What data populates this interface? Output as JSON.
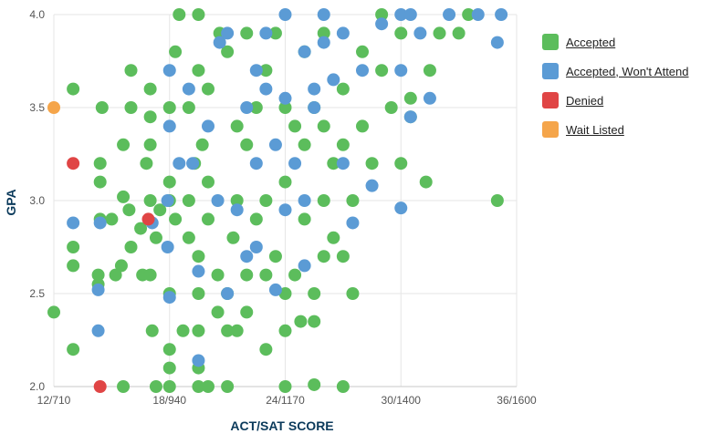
{
  "chart_data": {
    "type": "scatter",
    "xlabel": "ACT/SAT SCORE",
    "ylabel": "GPA",
    "xlim": [
      12,
      36
    ],
    "ylim": [
      2.0,
      4.0
    ],
    "x_ticks": [
      {
        "value": 12,
        "label": "12/710"
      },
      {
        "value": 18,
        "label": "18/940"
      },
      {
        "value": 24,
        "label": "24/1170"
      },
      {
        "value": 30,
        "label": "30/1400"
      },
      {
        "value": 36,
        "label": "36/1600"
      }
    ],
    "y_ticks": [
      {
        "value": 2.0,
        "label": "2.0"
      },
      {
        "value": 2.5,
        "label": "2.5"
      },
      {
        "value": 3.0,
        "label": "3.0"
      },
      {
        "value": 3.5,
        "label": "3.5"
      },
      {
        "value": 4.0,
        "label": "4.0"
      }
    ],
    "grid": true,
    "legend_position": "right",
    "series": [
      {
        "name": "Accepted",
        "color": "#5cbd5c",
        "points": [
          [
            12,
            2.4
          ],
          [
            13,
            2.2
          ],
          [
            13,
            2.65
          ],
          [
            13,
            2.75
          ],
          [
            13,
            3.6
          ],
          [
            14.3,
            2.55
          ],
          [
            14.3,
            2.6
          ],
          [
            14.4,
            2.9
          ],
          [
            14.4,
            3.1
          ],
          [
            14.4,
            3.2
          ],
          [
            14.5,
            3.5
          ],
          [
            15,
            2.9
          ],
          [
            15.2,
            2.6
          ],
          [
            15.5,
            2.65
          ],
          [
            15.6,
            3.02
          ],
          [
            15.6,
            3.3
          ],
          [
            15.6,
            2.0
          ],
          [
            15.9,
            2.95
          ],
          [
            16,
            3.7
          ],
          [
            16,
            2.75
          ],
          [
            16,
            3.5
          ],
          [
            16.5,
            2.85
          ],
          [
            16.6,
            2.6
          ],
          [
            16.8,
            3.2
          ],
          [
            17,
            2.6
          ],
          [
            17,
            3.0
          ],
          [
            17,
            3.3
          ],
          [
            17,
            3.45
          ],
          [
            17,
            3.6
          ],
          [
            17.1,
            2.3
          ],
          [
            17.3,
            2.0
          ],
          [
            17.3,
            2.8
          ],
          [
            17.5,
            2.95
          ],
          [
            18,
            2.0
          ],
          [
            18,
            2.1
          ],
          [
            18,
            2.2
          ],
          [
            18,
            2.5
          ],
          [
            18,
            3.0
          ],
          [
            18,
            3.1
          ],
          [
            18,
            3.5
          ],
          [
            18.3,
            3.8
          ],
          [
            18.5,
            4.0
          ],
          [
            18.3,
            2.9
          ],
          [
            18.7,
            2.3
          ],
          [
            19,
            2.8
          ],
          [
            19,
            3.0
          ],
          [
            19,
            3.5
          ],
          [
            19.3,
            3.2
          ],
          [
            19.5,
            2.0
          ],
          [
            19.5,
            2.1
          ],
          [
            19.5,
            2.3
          ],
          [
            19.5,
            2.5
          ],
          [
            19.5,
            2.7
          ],
          [
            19.5,
            3.7
          ],
          [
            19.5,
            4.0
          ],
          [
            19.7,
            3.3
          ],
          [
            20,
            2.0
          ],
          [
            20,
            2.9
          ],
          [
            20,
            3.1
          ],
          [
            20,
            3.6
          ],
          [
            20.5,
            2.4
          ],
          [
            20.5,
            2.6
          ],
          [
            20.6,
            3.9
          ],
          [
            21,
            2.0
          ],
          [
            21,
            2.3
          ],
          [
            21,
            2.5
          ],
          [
            21,
            3.8
          ],
          [
            21.3,
            2.8
          ],
          [
            21.5,
            2.3
          ],
          [
            21.5,
            3.0
          ],
          [
            21.5,
            3.4
          ],
          [
            22,
            2.4
          ],
          [
            22,
            2.6
          ],
          [
            22,
            3.3
          ],
          [
            22,
            3.9
          ],
          [
            22.5,
            2.9
          ],
          [
            22.5,
            3.5
          ],
          [
            23,
            2.2
          ],
          [
            23,
            2.6
          ],
          [
            23,
            3.0
          ],
          [
            23,
            3.7
          ],
          [
            23.5,
            2.7
          ],
          [
            23.5,
            3.9
          ],
          [
            24,
            2.0
          ],
          [
            24,
            2.3
          ],
          [
            24,
            2.5
          ],
          [
            24,
            3.1
          ],
          [
            24,
            3.5
          ],
          [
            24.5,
            2.6
          ],
          [
            24.5,
            3.4
          ],
          [
            24.8,
            2.35
          ],
          [
            25,
            2.9
          ],
          [
            25,
            3.3
          ],
          [
            25,
            3.8
          ],
          [
            25.5,
            2.01
          ],
          [
            25.5,
            2.35
          ],
          [
            25.5,
            2.5
          ],
          [
            25.5,
            3.5
          ],
          [
            26,
            2.7
          ],
          [
            26,
            3.0
          ],
          [
            26,
            3.4
          ],
          [
            26,
            3.9
          ],
          [
            26.5,
            2.8
          ],
          [
            26.5,
            3.2
          ],
          [
            27,
            2.0
          ],
          [
            27,
            2.7
          ],
          [
            27,
            3.3
          ],
          [
            27,
            3.6
          ],
          [
            27.5,
            2.5
          ],
          [
            27.5,
            3.0
          ],
          [
            28,
            3.4
          ],
          [
            28,
            3.8
          ],
          [
            28.5,
            3.2
          ],
          [
            29,
            3.7
          ],
          [
            29,
            4.0
          ],
          [
            29.5,
            3.5
          ],
          [
            30,
            3.2
          ],
          [
            30,
            3.9
          ],
          [
            30.5,
            3.45
          ],
          [
            30.5,
            3.55
          ],
          [
            31.3,
            3.1
          ],
          [
            31.5,
            3.7
          ],
          [
            32,
            3.9
          ],
          [
            33,
            3.9
          ],
          [
            33.5,
            4.0
          ],
          [
            35,
            3.0
          ]
        ]
      },
      {
        "name": "Accepted, Won't Attend",
        "color": "#5b9bd5",
        "points": [
          [
            13,
            2.88
          ],
          [
            14.3,
            2.3
          ],
          [
            14.3,
            2.52
          ],
          [
            14.4,
            2.88
          ],
          [
            17.1,
            2.88
          ],
          [
            17.9,
            2.75
          ],
          [
            17.9,
            3.0
          ],
          [
            18,
            3.4
          ],
          [
            18,
            3.7
          ],
          [
            18,
            2.48
          ],
          [
            18.5,
            3.2
          ],
          [
            19,
            3.6
          ],
          [
            19.2,
            3.2
          ],
          [
            19.5,
            2.62
          ],
          [
            19.5,
            2.14
          ],
          [
            20,
            3.4
          ],
          [
            20.5,
            3.0
          ],
          [
            20.6,
            3.85
          ],
          [
            21,
            2.5
          ],
          [
            21,
            3.9
          ],
          [
            21.5,
            2.95
          ],
          [
            22,
            3.5
          ],
          [
            22,
            2.7
          ],
          [
            22.5,
            3.7
          ],
          [
            22.5,
            2.75
          ],
          [
            22.5,
            3.2
          ],
          [
            23,
            3.6
          ],
          [
            23,
            3.9
          ],
          [
            23.5,
            3.3
          ],
          [
            23.5,
            2.52
          ],
          [
            24,
            4.0
          ],
          [
            24,
            3.55
          ],
          [
            24,
            2.95
          ],
          [
            24.5,
            3.2
          ],
          [
            25,
            2.65
          ],
          [
            25,
            3.8
          ],
          [
            25,
            3.0
          ],
          [
            25.5,
            3.6
          ],
          [
            25.5,
            3.5
          ],
          [
            26,
            3.85
          ],
          [
            26,
            4.0
          ],
          [
            26.5,
            3.65
          ],
          [
            27,
            3.2
          ],
          [
            27,
            3.9
          ],
          [
            27.5,
            2.88
          ],
          [
            28,
            3.7
          ],
          [
            28.5,
            3.08
          ],
          [
            29,
            3.95
          ],
          [
            30,
            3.7
          ],
          [
            30,
            4.0
          ],
          [
            30,
            2.96
          ],
          [
            30.5,
            3.45
          ],
          [
            30.5,
            4.0
          ],
          [
            31,
            3.9
          ],
          [
            31.5,
            3.55
          ],
          [
            32.5,
            4.0
          ],
          [
            34,
            4.0
          ],
          [
            35,
            3.85
          ],
          [
            35.2,
            4.0
          ]
        ]
      },
      {
        "name": "Denied",
        "color": "#e04545",
        "points": [
          [
            13,
            3.2
          ],
          [
            14.4,
            2.0
          ],
          [
            16.9,
            2.9
          ]
        ]
      },
      {
        "name": "Wait Listed",
        "color": "#f5a54a",
        "points": [
          [
            12,
            3.5
          ]
        ]
      }
    ]
  }
}
